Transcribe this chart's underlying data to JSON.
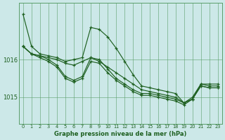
{
  "title": "Graphe pression niveau de la mer (hPa)",
  "bg_color": "#cce8e8",
  "grid_color": "#5a9e6a",
  "line_color": "#1e6020",
  "yticks": [
    1015,
    1016
  ],
  "ylim": [
    1014.3,
    1017.5
  ],
  "xlim": [
    -0.5,
    23.5
  ],
  "series": [
    [
      1017.2,
      1016.35,
      1016.15,
      1016.1,
      1016.05,
      1015.95,
      1016.0,
      1016.05,
      1016.85,
      1016.8,
      1016.6,
      1016.3,
      1015.95,
      1015.6,
      1015.3,
      1015.25,
      1015.2,
      1015.15,
      1015.1,
      1014.85,
      1015.0,
      1015.35,
      1015.35,
      1015.35
    ],
    [
      1016.35,
      1016.15,
      1016.1,
      1016.05,
      1016.0,
      1015.9,
      1015.85,
      1015.95,
      1016.05,
      1015.95,
      1015.8,
      1015.65,
      1015.5,
      1015.35,
      1015.2,
      1015.15,
      1015.1,
      1015.05,
      1015.0,
      1014.85,
      1014.95,
      1015.35,
      1015.3,
      1015.3
    ],
    [
      1016.35,
      1016.15,
      1016.1,
      1016.0,
      1015.85,
      1015.55,
      1015.45,
      1015.55,
      1016.05,
      1016.0,
      1015.75,
      1015.5,
      1015.35,
      1015.2,
      1015.1,
      1015.1,
      1015.05,
      1015.0,
      1014.95,
      1014.85,
      1014.95,
      1015.3,
      1015.25,
      1015.25
    ],
    [
      1016.35,
      1016.15,
      1016.05,
      1015.95,
      1015.8,
      1015.5,
      1015.4,
      1015.5,
      1015.95,
      1015.9,
      1015.65,
      1015.45,
      1015.3,
      1015.15,
      1015.05,
      1015.05,
      1015.0,
      1014.95,
      1014.9,
      1014.8,
      1014.95,
      1015.3,
      1015.25,
      1015.25
    ]
  ]
}
